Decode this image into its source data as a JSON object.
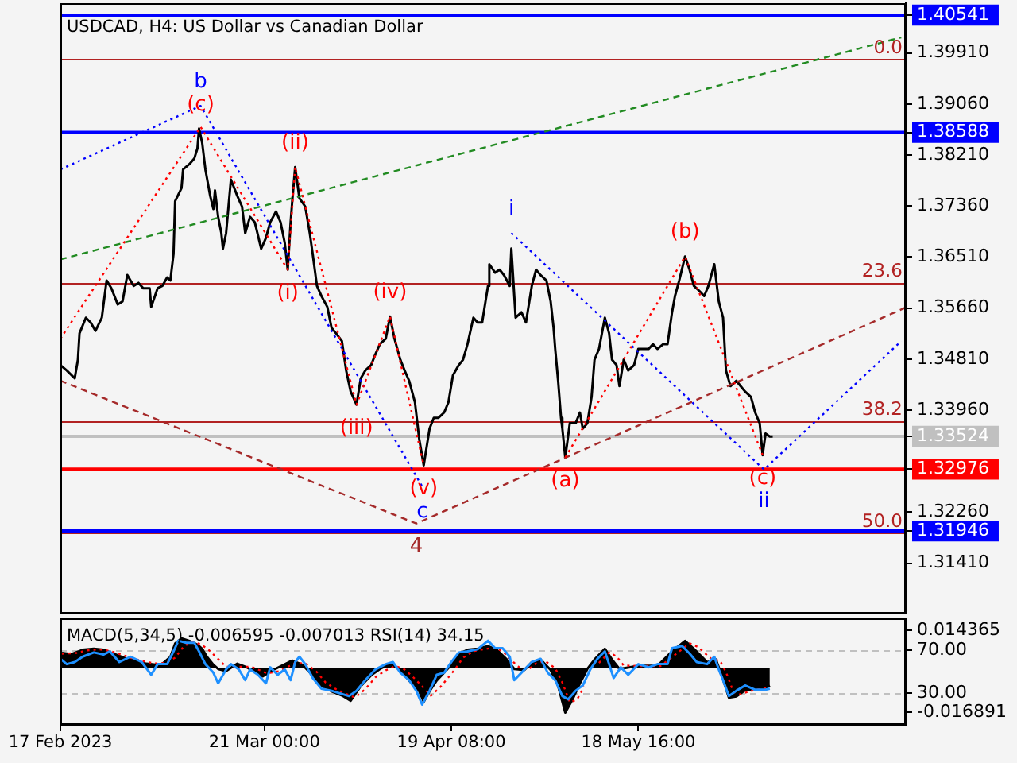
{
  "chart_data": [
    {
      "type": "line",
      "title": "USDCAD, H4: US Dollar vs Canadian Dollar",
      "tick_labels": "y",
      "xlim": [
        "2023-02-17T00:00",
        "2023-06-29T15:00"
      ],
      "ylim": [
        1.3057,
        1.4074
      ],
      "yticks": [
        1.40541,
        {
          "value": 1.3991,
          "label": "1.39910"
        },
        {
          "value": 1.3906,
          "label": "1.39060"
        },
        1.38588,
        {
          "value": 1.3821,
          "label": "1.38210"
        },
        {
          "value": 1.3736,
          "label": "1.37360"
        },
        {
          "value": 1.3651,
          "label": "1.36510"
        },
        {
          "value": 1.3566,
          "label": "1.35660"
        },
        {
          "value": 1.3481,
          "label": "1.34810"
        },
        {
          "value": 1.3396,
          "label": "1.33960"
        },
        1.33524,
        1.32976,
        {
          "value": 1.3226,
          "label": "1.32260"
        },
        1.31946,
        {
          "value": 1.3141,
          "label": "1.31410"
        }
      ],
      "ref_lines": [
        {
          "axis": "y",
          "value": 1.398,
          "color": "#b22222"
        },
        {
          "axis": "y",
          "value": 1.3608,
          "color": "#b22222"
        },
        {
          "axis": "y",
          "value": 1.3378,
          "color": "#b22222"
        },
        {
          "axis": "y",
          "value": 1.3192,
          "color": "#b22222"
        },
        {
          "axis": "y",
          "value": 1.40541,
          "color": "#0000ff"
        },
        {
          "axis": "y",
          "value": 1.38588,
          "color": "#0000ff"
        },
        {
          "axis": "y",
          "value": 1.33524,
          "color": "#c0c0c0"
        },
        {
          "axis": "y",
          "value": 1.32976,
          "color": "#ff0000"
        },
        {
          "axis": "y",
          "value": 1.31946,
          "color": "#0000ff"
        }
      ],
      "annotations": [
        {
          "text": "0.0",
          "x": "2023-06-29T15:00",
          "y": 1.398
        },
        {
          "text": "23.6",
          "x": "2023-06-29T15:00",
          "y": 1.3608
        },
        {
          "text": "38.2",
          "x": "2023-06-29T15:00",
          "y": 1.3378
        },
        {
          "text": "50.0",
          "x": "2023-06-29T15:00",
          "y": 1.3192
        },
        {
          "text": "b",
          "x": "2023-03-11T00:00",
          "y": 1.3903
        },
        {
          "text": "(c)",
          "x": "2023-03-11T00:00",
          "y": 1.3868
        },
        {
          "text": "(i)",
          "x": "2023-03-24T16:00",
          "y": 1.363
        },
        {
          "text": "(ii)",
          "x": "2023-03-25T20:00",
          "y": 1.3801
        },
        {
          "text": "(iii)",
          "x": "2023-04-04T11:00",
          "y": 1.3405
        },
        {
          "text": "(iv)",
          "x": "2023-04-09T17:00",
          "y": 1.3552
        },
        {
          "text": "(v)",
          "x": "2023-04-15T00:00",
          "y": 1.3304
        },
        {
          "text": "c",
          "x": "2023-04-14T18:00",
          "y": 1.3269
        },
        {
          "text": "4",
          "x": "2023-04-13T20:00",
          "y": 1.3207
        },
        {
          "text": "i",
          "x": "2023-04-28T18:00",
          "y": 1.3691
        },
        {
          "text": "(a)",
          "x": "2023-05-07T05:00",
          "y": 1.3317
        },
        {
          "text": "(b)",
          "x": "2023-05-26T00:00",
          "y": 1.3652
        },
        {
          "text": "(c)",
          "x": "2023-06-07T04:00",
          "y": 1.3321
        },
        {
          "text": "ii",
          "x": "2023-06-07T09:00",
          "y": 1.3297
        }
      ],
      "series": [
        {
          "color": "#000000",
          "x": [
            "2023-02-17T00:00",
            "2023-02-18T00:00",
            "2023-02-19T06:00",
            "2023-02-19T18:00",
            "2023-02-20T00:00",
            "2023-02-21T00:00",
            "2023-02-21T18:00",
            "2023-02-22T12:00",
            "2023-02-23T12:00",
            "2023-02-24T06:00",
            "2023-02-25T00:00",
            "2023-02-26T00:00",
            "2023-02-26T18:00",
            "2023-02-27T12:00",
            "2023-02-28T12:00",
            "2023-03-01T06:00",
            "2023-03-02T00:00",
            "2023-03-03T00:00",
            "2023-03-03T06:00",
            "2023-03-04T06:00",
            "2023-03-05T00:00",
            "2023-03-05T18:00",
            "2023-03-06T06:00",
            "2023-03-06T18:00",
            "2023-03-07T00:00",
            "2023-03-08T00:00",
            "2023-03-08T06:00",
            "2023-03-09T06:00",
            "2023-03-10T00:00",
            "2023-03-10T12:00",
            "2023-03-10T18:00",
            "2023-03-11T06:00",
            "2023-03-11T18:00",
            "2023-03-12T12:00",
            "2023-03-13T00:00",
            "2023-03-13T06:00",
            "2023-03-13T18:00",
            "2023-03-14T06:00",
            "2023-03-14T12:00",
            "2023-03-15T00:00",
            "2023-03-15T18:00",
            "2023-03-16T18:00",
            "2023-03-17T12:00",
            "2023-03-18T00:00",
            "2023-03-18T18:00",
            "2023-03-19T12:00",
            "2023-03-20T12:00",
            "2023-03-21T06:00",
            "2023-03-21T22:00",
            "2023-03-22T20:00",
            "2023-03-23T13:00",
            "2023-03-24T05:00",
            "2023-03-24T16:00",
            "2023-03-25T03:00",
            "2023-03-25T09:00",
            "2023-03-25T20:00",
            "2023-03-26T12:00",
            "2023-03-27T10:00",
            "2023-03-28T03:00",
            "2023-03-28T14:00",
            "2023-03-29T06:00",
            "2023-03-29T23:00",
            "2023-03-30T21:00",
            "2023-03-31T13:00",
            "2023-04-01T06:00",
            "2023-04-02T04:00",
            "2023-04-02T20:00",
            "2023-04-03T13:00",
            "2023-04-04T11:00",
            "2023-04-05T03:00",
            "2023-04-05T20:00",
            "2023-04-06T18:00",
            "2023-04-07T10:00",
            "2023-04-08T03:00",
            "2023-04-09T01:00",
            "2023-04-09T17:00",
            "2023-04-10T10:00",
            "2023-04-11T08:00",
            "2023-04-12T00:00",
            "2023-04-12T17:00",
            "2023-04-13T15:00",
            "2023-04-14T07:00",
            "2023-04-15T00:00",
            "2023-04-15T22:00",
            "2023-04-16T14:00",
            "2023-04-17T07:00",
            "2023-04-18T05:00",
            "2023-04-18T21:00",
            "2023-04-19T14:00",
            "2023-04-20T12:00",
            "2023-04-21T04:00",
            "2023-04-21T21:00",
            "2023-04-22T19:00",
            "2023-04-23T11:00",
            "2023-04-24T04:00",
            "2023-04-25T02:00",
            "2023-04-25T07:00",
            "2023-04-26T05:00",
            "2023-04-26T22:00",
            "2023-04-27T14:00",
            "2023-04-28T12:00",
            "2023-04-28T18:00",
            "2023-04-29T10:00",
            "2023-04-30T08:00",
            "2023-05-01T01:00",
            "2023-05-01T23:00",
            "2023-05-02T15:00",
            "2023-05-03T08:00",
            "2023-05-04T06:00",
            "2023-05-04T22:00",
            "2023-05-05T09:00",
            "2023-05-05T15:00",
            "2023-05-06T02:00",
            "2023-05-06T13:00",
            "2023-05-06T18:00",
            "2023-05-07T05:00",
            "2023-05-07T22:00",
            "2023-05-08T20:00",
            "2023-05-09T12:00",
            "2023-05-09T23:00",
            "2023-05-10T16:00",
            "2023-05-11T08:00",
            "2023-05-11T19:00",
            "2023-05-12T12:00",
            "2023-05-13T10:00",
            "2023-05-14T02:00",
            "2023-05-14T13:00",
            "2023-05-15T06:00",
            "2023-05-15T17:00",
            "2023-05-16T09:00",
            "2023-05-17T02:00",
            "2023-05-18T00:00",
            "2023-05-18T16:00",
            "2023-05-19T09:00",
            "2023-05-20T07:00",
            "2023-05-20T23:00",
            "2023-05-21T16:00",
            "2023-05-22T14:00",
            "2023-05-23T06:00",
            "2023-05-23T23:00",
            "2023-05-24T10:00",
            "2023-05-25T02:00",
            "2023-05-26T00:00",
            "2023-05-26T17:00",
            "2023-05-27T09:00",
            "2023-05-28T07:00",
            "2023-05-29T00:00",
            "2023-05-29T16:00",
            "2023-05-30T14:00",
            "2023-05-31T07:00",
            "2023-05-31T23:00",
            "2023-06-01T10:00",
            "2023-06-02T03:00",
            "2023-06-03T01:00",
            "2023-06-03T17:00",
            "2023-06-04T10:00",
            "2023-06-05T08:00",
            "2023-06-06T00:00",
            "2023-06-06T17:00",
            "2023-06-07T04:00",
            "2023-06-07T15:00",
            "2023-06-08T07:00",
            "2023-06-08T18:00"
          ],
          "values": [
            1.3471,
            1.3462,
            1.3449,
            1.348,
            1.3524,
            1.355,
            1.3542,
            1.3528,
            1.355,
            1.3612,
            1.3599,
            1.3572,
            1.3577,
            1.3621,
            1.3603,
            1.3608,
            1.3599,
            1.3599,
            1.3568,
            1.3599,
            1.3603,
            1.3617,
            1.3612,
            1.3656,
            1.3744,
            1.3766,
            1.3797,
            1.3806,
            1.3815,
            1.3832,
            1.3865,
            1.3841,
            1.3797,
            1.3753,
            1.3731,
            1.3762,
            1.3718,
            1.3691,
            1.3665,
            1.3691,
            1.378,
            1.3753,
            1.3735,
            1.3691,
            1.3718,
            1.3709,
            1.3665,
            1.3683,
            1.3709,
            1.3727,
            1.3709,
            1.3674,
            1.363,
            1.3709,
            1.3744,
            1.3801,
            1.3749,
            1.3735,
            1.3691,
            1.3656,
            1.3603,
            1.3586,
            1.3568,
            1.3533,
            1.3524,
            1.3511,
            1.3462,
            1.3427,
            1.3405,
            1.3449,
            1.3462,
            1.3471,
            1.3489,
            1.3506,
            1.3515,
            1.3552,
            1.3515,
            1.348,
            1.3462,
            1.3445,
            1.3409,
            1.3348,
            1.3304,
            1.3365,
            1.3383,
            1.3383,
            1.3392,
            1.3409,
            1.3454,
            1.3471,
            1.348,
            1.3506,
            1.355,
            1.3542,
            1.3542,
            1.3603,
            1.3639,
            1.3625,
            1.363,
            1.3621,
            1.3603,
            1.3665,
            1.355,
            1.3559,
            1.3542,
            1.3603,
            1.363,
            1.3621,
            1.3612,
            1.3577,
            1.3533,
            1.3498,
            1.3445,
            1.3383,
            1.3365,
            1.3317,
            1.3374,
            1.3374,
            1.3392,
            1.3365,
            1.3374,
            1.3418,
            1.348,
            1.3498,
            1.355,
            1.3524,
            1.348,
            1.3471,
            1.3436,
            1.348,
            1.3462,
            1.3471,
            1.3498,
            1.3498,
            1.3498,
            1.3506,
            1.3498,
            1.3506,
            1.3506,
            1.3559,
            1.3586,
            1.3612,
            1.3652,
            1.363,
            1.3603,
            1.3594,
            1.3586,
            1.3603,
            1.3639,
            1.3577,
            1.355,
            1.3462,
            1.3436,
            1.3445,
            1.3436,
            1.3427,
            1.3418,
            1.3392,
            1.3374,
            1.3321,
            1.3357,
            1.3352,
            1.3352
          ]
        },
        {
          "color": "#228b22",
          "line_style": "dashed",
          "x": [
            "2023-02-17T00:00",
            "2023-06-28T22:00"
          ],
          "values": [
            1.3647,
            1.4017
          ]
        },
        {
          "color": "#a52a2a",
          "line_style": "dashed",
          "x": [
            "2023-02-17T00:00",
            "2023-04-13T20:00",
            "2023-06-29T15:00"
          ],
          "values": [
            1.3445,
            1.3207,
            1.3567
          ]
        },
        {
          "color": "#0000ff",
          "line_style": "dotted",
          "x": [
            "2023-02-17T00:00",
            "2023-03-11T00:00",
            "2023-04-14T18:00"
          ],
          "values": [
            1.3797,
            1.3903,
            1.3269
          ]
        },
        {
          "color": "#0000ff",
          "line_style": "dotted",
          "x": [
            "2023-04-28T18:00",
            "2023-06-07T09:00",
            "2023-06-28T22:00"
          ],
          "values": [
            1.3691,
            1.3297,
            1.3511
          ]
        },
        {
          "color": "#ff0000",
          "line_style": "dotted",
          "x": [
            "2023-02-17T00:00",
            "2023-03-11T00:00",
            "2023-03-24T16:00",
            "2023-03-25T20:00",
            "2023-04-04T11:00",
            "2023-04-09T17:00",
            "2023-04-15T00:00"
          ],
          "values": [
            1.3515,
            1.3868,
            1.363,
            1.3801,
            1.3405,
            1.3552,
            1.3304
          ]
        },
        {
          "color": "#ff0000",
          "line_style": "dotted",
          "x": [
            "2023-05-07T05:00",
            "2023-05-26T00:00",
            "2023-06-07T04:00"
          ],
          "values": [
            1.3317,
            1.3652,
            1.3321
          ]
        }
      ]
    },
    {
      "type": "line",
      "title": "MACD(5,34,5) -0.006595 -0.007013 RSI(14) 34.15",
      "xlim": [
        "2023-02-17T00:00",
        "2023-06-29T15:00"
      ],
      "xticks": [
        {
          "value": "2023-02-17",
          "label": "17 Feb 2023"
        },
        {
          "value": "2023-03-21T00:00",
          "label": "21 Mar 00:00"
        },
        {
          "value": "2023-04-19T08:00",
          "label": "19 Apr 08:00"
        },
        {
          "value": "2023-05-18T16:00",
          "label": "18 May 16:00"
        }
      ],
      "ylim": [
        -0.0216,
        0.019
      ],
      "yticks": [
        0.014365,
        -0.016891
      ],
      "y2lim": [
        0,
        100
      ],
      "y2ticks": [
        {
          "value": 70,
          "label": "70.00"
        },
        {
          "value": 30,
          "label": "30.00"
        }
      ],
      "ref_lines": [
        {
          "axis": "y2",
          "value": 70,
          "color": "#c0c0c0",
          "line_style": "dashed"
        },
        {
          "axis": "y2",
          "value": 30,
          "color": "#c0c0c0",
          "line_style": "dashed"
        }
      ],
      "series": [
        {
          "type": "area",
          "color": "#000000",
          "x": [
            "2023-02-17T06:00",
            "2023-02-18T18:00",
            "2023-02-20T12:00",
            "2023-02-22T06:00",
            "2023-02-23T18:00",
            "2023-02-25T12:00",
            "2023-02-27T06:00",
            "2023-02-28T18:00",
            "2023-03-02T12:00",
            "2023-03-04T06:00",
            "2023-03-05T00:00",
            "2023-03-06T06:00",
            "2023-03-07T00:00",
            "2023-03-08T00:00",
            "2023-03-09T06:00",
            "2023-03-10T12:00",
            "2023-03-11T06:00",
            "2023-03-12T00:00",
            "2023-03-13T00:00",
            "2023-03-13T18:00",
            "2023-03-15T00:00",
            "2023-03-16T18:00",
            "2023-03-18T06:00",
            "2023-03-20T18:00",
            "2023-03-22T09:00",
            "2023-03-25T09:00",
            "2023-03-26T23:00",
            "2023-03-28T14:00",
            "2023-03-29T23:00",
            "2023-03-31T13:00",
            "2023-04-02T04:00",
            "2023-04-03T13:00",
            "2023-04-05T03:00",
            "2023-04-06T18:00",
            "2023-04-08T03:00",
            "2023-04-09T17:00",
            "2023-04-11T08:00",
            "2023-04-12T17:00",
            "2023-04-14T07:00",
            "2023-04-15T00:00",
            "2023-04-15T22:00",
            "2023-04-17T01:00",
            "2023-04-18T05:00",
            "2023-04-19T08:00",
            "2023-04-20T12:00",
            "2023-04-21T21:00",
            "2023-04-23T11:00",
            "2023-04-25T02:00",
            "2023-04-26T11:00",
            "2023-04-28T01:00",
            "2023-04-29T05:00",
            "2023-04-30T19:00",
            "2023-05-01T23:00",
            "2023-05-03T08:00",
            "2023-05-04T22:00",
            "2023-05-06T02:00",
            "2023-05-07T05:00",
            "2023-05-08T09:00",
            "2023-05-09T12:00",
            "2023-05-10T16:00",
            "2023-05-11T19:00",
            "2023-05-13T10:00",
            "2023-05-14T13:00",
            "2023-05-15T17:00",
            "2023-05-18T16:00",
            "2023-05-21T16:00",
            "2023-05-23T23:00",
            "2023-05-26T00:00",
            "2023-05-27T09:00",
            "2023-05-29T11:00",
            "2023-05-30T20:00",
            "2023-05-31T18:00",
            "2023-06-01T21:00",
            "2023-06-03T01:00",
            "2023-06-04T10:00",
            "2023-06-06T00:00",
            "2023-06-07T04:00",
            "2023-06-08T07:00"
          ],
          "values": [
            0.0058,
            0.0054,
            0.007,
            0.0074,
            0.007,
            0.0054,
            0.0037,
            0.0029,
            0.0017,
            0.0013,
            0.0017,
            0.0043,
            0.0094,
            0.0114,
            0.0104,
            0.009,
            0.0074,
            0.0043,
            0.0013,
            -0.0003,
            -0.0011,
            0.0017,
            0.0003,
            -0.0031,
            -0.0007,
            0.0029,
            0.0013,
            -0.0027,
            -0.0068,
            -0.0088,
            -0.0104,
            -0.0124,
            -0.0068,
            -0.0027,
            -0.0003,
            0.0017,
            -0.0007,
            -0.0047,
            -0.0088,
            -0.0128,
            -0.0088,
            -0.0047,
            -0.0017,
            0.0013,
            0.0054,
            0.007,
            0.0074,
            0.0084,
            0.007,
            0.0033,
            -0.0003,
            -0.0007,
            0.0023,
            0.0033,
            -0.0007,
            -0.0068,
            -0.0169,
            -0.0118,
            -0.0058,
            -0.0003,
            0.0033,
            0.0074,
            0.0033,
            -0.0003,
            0.0009,
            0.0009,
            0.0064,
            0.0104,
            0.0074,
            0.0023,
            0.0033,
            -0.0027,
            -0.0112,
            -0.0108,
            -0.0084,
            -0.0078,
            -0.0084,
            -0.0066
          ]
        },
        {
          "color": "#ff0000",
          "line_style": "dotted",
          "x": [
            "2023-02-17T06:00",
            "2023-02-19T12:00",
            "2023-02-21T06:00",
            "2023-02-23T00:00",
            "2023-02-24T18:00",
            "2023-02-26T12:00",
            "2023-02-28T06:00",
            "2023-03-02T00:00",
            "2023-03-03T18:00",
            "2023-03-05T12:00",
            "2023-03-07T00:00",
            "2023-03-08T06:00",
            "2023-03-09T12:00",
            "2023-03-11T00:00",
            "2023-03-12T06:00",
            "2023-03-13T18:00",
            "2023-03-15T00:00",
            "2023-03-17T00:00",
            "2023-03-19T00:00",
            "2023-03-21T11:00",
            "2023-03-23T07:00",
            "2023-03-26T01:00",
            "2023-03-27T16:00",
            "2023-03-29T06:00",
            "2023-03-30T15:00",
            "2023-04-01T06:00",
            "2023-04-02T20:00",
            "2023-04-04T05:00",
            "2023-04-05T20:00",
            "2023-04-07T10:00",
            "2023-04-09T01:00",
            "2023-04-10T15:00",
            "2023-04-12T00:00",
            "2023-04-13T09:00",
            "2023-04-15T00:00",
            "2023-04-16T03:00",
            "2023-04-17T12:00",
            "2023-04-18T21:00",
            "2023-04-20T01:00",
            "2023-04-21T04:00",
            "2023-04-22T19:00",
            "2023-04-24T09:00",
            "2023-04-26T00:00",
            "2023-04-27T09:00",
            "2023-04-28T18:00",
            "2023-04-30T03:00",
            "2023-05-01T12:00",
            "2023-05-02T15:00",
            "2023-05-04T00:00",
            "2023-05-05T15:00",
            "2023-05-06T18:00",
            "2023-05-07T22:00",
            "2023-05-09T01:00",
            "2023-05-10T05:00",
            "2023-05-11T08:00",
            "2023-05-12T12:00",
            "2023-05-14T02:00",
            "2023-05-15T06:00",
            "2023-05-16T09:00",
            "2023-05-19T03:00",
            "2023-05-22T03:00",
            "2023-05-24T15:00",
            "2023-05-26T17:00",
            "2023-05-28T02:00",
            "2023-05-30T03:00",
            "2023-05-31T12:00",
            "2023-06-01T10:00",
            "2023-06-02T14:00",
            "2023-06-03T17:00",
            "2023-06-05T02:00",
            "2023-06-06T17:00",
            "2023-06-08T07:00"
          ],
          "values": [
            0.0055,
            0.0058,
            0.0068,
            0.0072,
            0.0066,
            0.0052,
            0.0038,
            0.0027,
            0.0018,
            0.002,
            0.004,
            0.008,
            0.01,
            0.0092,
            0.007,
            0.0035,
            0.0005,
            0.0005,
            0.0005,
            -0.002,
            -0.0012,
            0.0022,
            0.0015,
            -0.0015,
            -0.0055,
            -0.008,
            -0.0098,
            -0.0112,
            -0.008,
            -0.0035,
            -0.0008,
            0.0008,
            -0.0005,
            -0.0035,
            -0.0075,
            -0.0105,
            -0.0075,
            -0.0035,
            0,
            0.004,
            0.0065,
            0.0072,
            0.0078,
            0.0065,
            0.003,
            0,
            -0.0003,
            0.0018,
            0.0028,
            0,
            -0.0055,
            -0.013,
            -0.012,
            -0.007,
            null,
            0.002,
            0.006,
            0.0045,
            0.001,
            0.0008,
            0.0008,
            0.0055,
            0.0095,
            0.008,
            0.0035,
            0.0028,
            -0.0015,
            -0.009,
            -0.01,
            -0.0088,
            -0.008,
            -0.007
          ]
        },
        {
          "color": "#1e90ff",
          "axis": "y2",
          "x": [
            "2023-02-17T00:00",
            "2023-02-18T00:00",
            "2023-02-19T06:00",
            "2023-02-20T12:00",
            "2023-02-22T06:00",
            "2023-02-23T18:00",
            "2023-02-24T18:00",
            "2023-02-26T06:00",
            "2023-02-28T00:00",
            "2023-03-01T18:00",
            "2023-03-03T06:00",
            "2023-03-04T06:00",
            "2023-03-05T18:00",
            "2023-03-06T18:00",
            "2023-03-07T12:00",
            "2023-03-08T18:00",
            "2023-03-10T00:00",
            "2023-03-10T18:00",
            "2023-03-11T18:00",
            "2023-03-13T00:00",
            "2023-03-13T18:00",
            "2023-03-15T00:00",
            "2023-03-15T18:00",
            "2023-03-17T00:00",
            "2023-03-18T00:00",
            "2023-03-18T18:00",
            "2023-03-20T00:00",
            "2023-03-21T06:00",
            "2023-03-21T22:00",
            "2023-03-23T02:00",
            "2023-03-24T05:00",
            "2023-03-25T03:00",
            "2023-03-25T20:00",
            "2023-03-26T12:00",
            "2023-03-27T10:00",
            "2023-03-28T14:00",
            "2023-03-29T23:00",
            "2023-03-31T13:00",
            "2023-04-02T04:00",
            "2023-04-03T07:00",
            "2023-04-04T11:00",
            "2023-04-05T20:00",
            "2023-04-07T10:00",
            "2023-04-09T01:00",
            "2023-04-10T04:00",
            "2023-04-11T08:00",
            "2023-04-12T17:00",
            "2023-04-13T20:00",
            "2023-04-14T18:00",
            "2023-04-15T22:00",
            "2023-04-17T01:00",
            "2023-04-18T05:00",
            "2023-04-19T08:00",
            "2023-04-20T12:00",
            "2023-04-21T21:00",
            "2023-04-23T11:00",
            "2023-04-25T02:00",
            "2023-04-26T05:00",
            "2023-04-27T09:00",
            "2023-04-28T12:00",
            "2023-04-29T05:00",
            "2023-04-30T08:00",
            "2023-05-01T23:00",
            "2023-05-03T08:00",
            "2023-05-04T11:00",
            "2023-05-05T15:00",
            "2023-05-06T18:00",
            "2023-05-07T16:00",
            "2023-05-08T20:00",
            "2023-05-09T23:00",
            "2023-05-11T03:00",
            "2023-05-12T06:00",
            "2023-05-13T10:00",
            "2023-05-14T02:00",
            "2023-05-14T19:00",
            "2023-05-15T22:00",
            "2023-05-17T02:00",
            "2023-05-18T16:00",
            "2023-05-20T07:00",
            "2023-05-21T16:00",
            "2023-05-23T06:00",
            "2023-05-23T23:00",
            "2023-05-25T13:00",
            "2023-05-26T17:00",
            "2023-05-27T20:00",
            "2023-05-29T11:00",
            "2023-05-30T14:00",
            "2023-05-31T07:00",
            "2023-05-31T23:00",
            "2023-06-01T21:00",
            "2023-06-03T01:00",
            "2023-06-04T10:00",
            "2023-06-06T00:00",
            "2023-06-07T15:00",
            "2023-06-08T07:00"
          ],
          "values": [
            62,
            57,
            59,
            64,
            68,
            66,
            69,
            59,
            64,
            59,
            47,
            57,
            57,
            69,
            79,
            77,
            77,
            69,
            57,
            49,
            39,
            52,
            57,
            52,
            42,
            52,
            47,
            39,
            54,
            47,
            52,
            42,
            59,
            64,
            57,
            44,
            34,
            32,
            29,
            27,
            32,
            42,
            52,
            57,
            59,
            49,
            42,
            32,
            19,
            32,
            47,
            49,
            59,
            68,
            69,
            71,
            79,
            72,
            72,
            64,
            42,
            49,
            59,
            62,
            49,
            42,
            27,
            24,
            32,
            37,
            52,
            62,
            69,
            57,
            44,
            54,
            47,
            57,
            54,
            57,
            57,
            72,
            74,
            67,
            59,
            57,
            64,
            52,
            42,
            27,
            32,
            37,
            33,
            33,
            34
          ]
        }
      ]
    }
  ]
}
